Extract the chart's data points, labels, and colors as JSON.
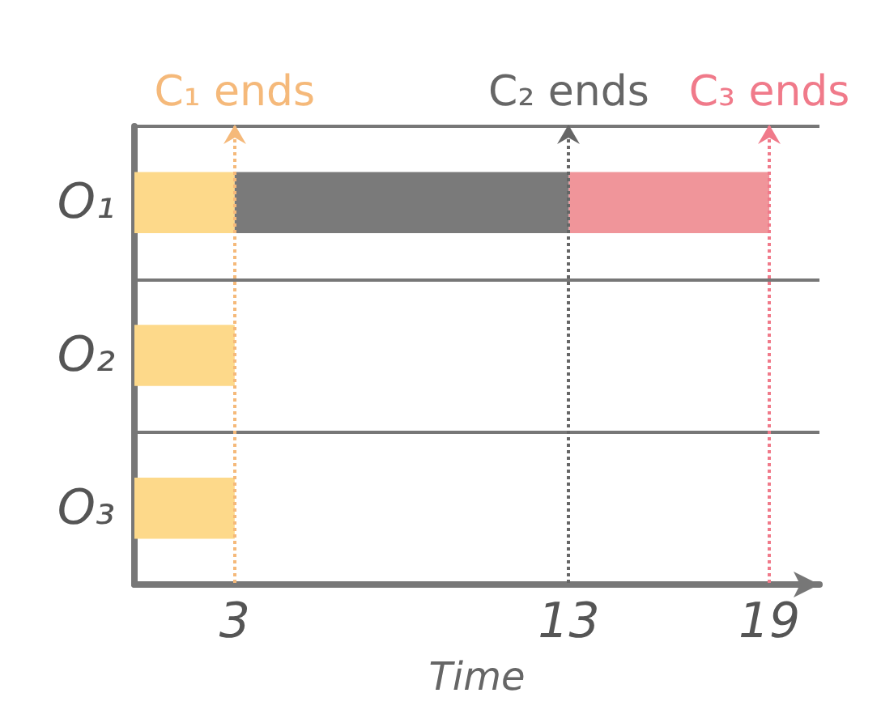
{
  "chart_data": {
    "type": "bar",
    "orientation": "horizontal",
    "stacked": true,
    "categories": [
      "O₁",
      "O₂",
      "O₃"
    ],
    "series": [
      {
        "color": "#fdd98a",
        "values": [
          3,
          3,
          3
        ]
      },
      {
        "color": "#7a7a7a",
        "values": [
          10,
          null,
          null
        ]
      },
      {
        "color": "#f0959a",
        "values": [
          6,
          null,
          null
        ]
      }
    ],
    "xlim": [
      0,
      20.5
    ],
    "xticks": [
      3,
      13,
      19
    ],
    "xlabel": "Time",
    "grid": "y",
    "ref_lines": [
      {
        "axis": "x",
        "value": 3,
        "label": "C₁ ends",
        "color": "#f5b97a",
        "line_style": "dotted"
      },
      {
        "axis": "x",
        "value": 13,
        "label": "C₂ ends",
        "color": "#666666",
        "line_style": "dotted"
      },
      {
        "axis": "x",
        "value": 19,
        "label": "C₃ ends",
        "color": "#f07a8a",
        "line_style": "dotted"
      }
    ]
  }
}
